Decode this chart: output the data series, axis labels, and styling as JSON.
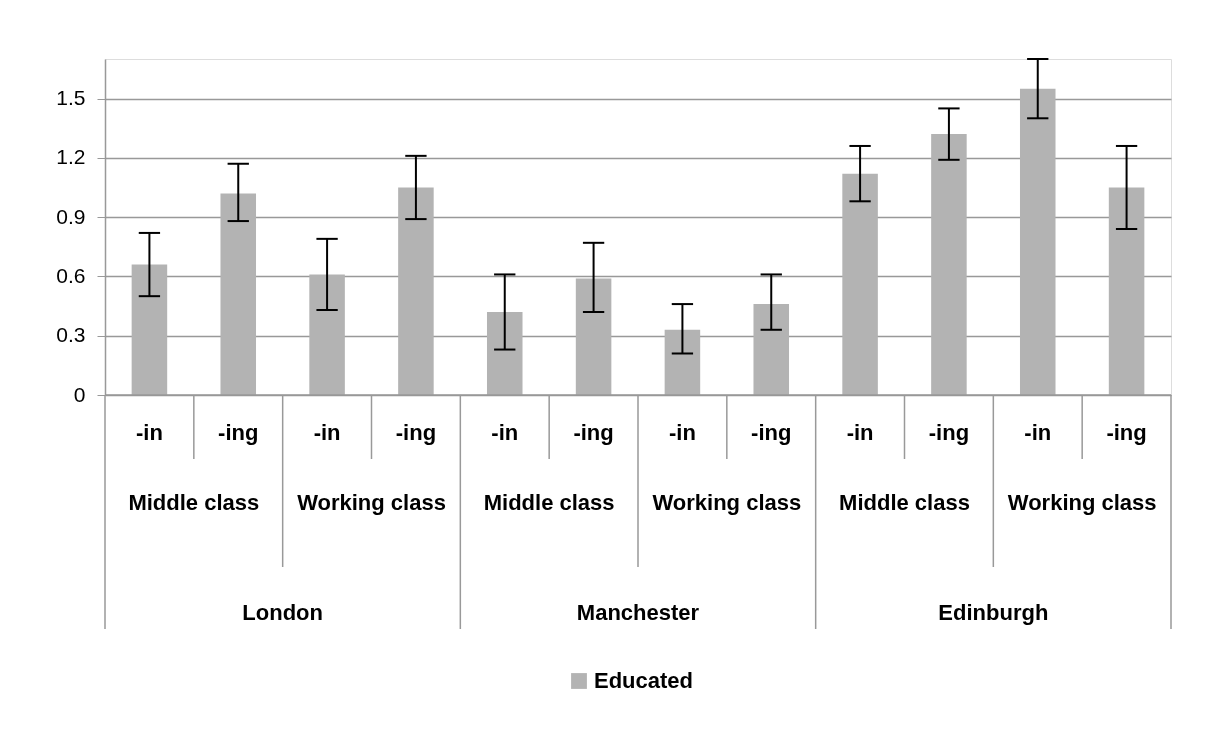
{
  "chart_data": {
    "type": "bar",
    "categories": [
      "-in",
      "-ing",
      "-in",
      "-ing",
      "-in",
      "-ing",
      "-in",
      "-ing",
      "-in",
      "-ing",
      "-in",
      "-ing"
    ],
    "series": [
      {
        "name": "Educated",
        "color": "#b3b3b3",
        "values": [
          0.66,
          1.02,
          0.61,
          1.05,
          0.42,
          0.59,
          0.33,
          0.46,
          1.12,
          1.32,
          1.55,
          1.05
        ],
        "errors": [
          [
            0.5,
            0.82
          ],
          [
            0.88,
            1.17
          ],
          [
            0.43,
            0.79
          ],
          [
            0.89,
            1.21
          ],
          [
            0.23,
            0.61
          ],
          [
            0.42,
            0.77
          ],
          [
            0.21,
            0.46
          ],
          [
            0.33,
            0.61
          ],
          [
            0.98,
            1.26
          ],
          [
            1.19,
            1.45
          ],
          [
            1.4,
            1.7
          ],
          [
            0.84,
            1.26
          ]
        ]
      }
    ],
    "annotations": [
      "Middle class",
      "Working class",
      "Middle class",
      "Working class",
      "Middle class",
      "Working class",
      "London",
      "Manchester",
      "Edinburgh"
    ],
    "ylim": [
      0,
      1.7
    ],
    "yticks": [
      0,
      0.3,
      0.6,
      0.9,
      1.2,
      1.5
    ],
    "grid": "y",
    "legend": "bottom"
  }
}
